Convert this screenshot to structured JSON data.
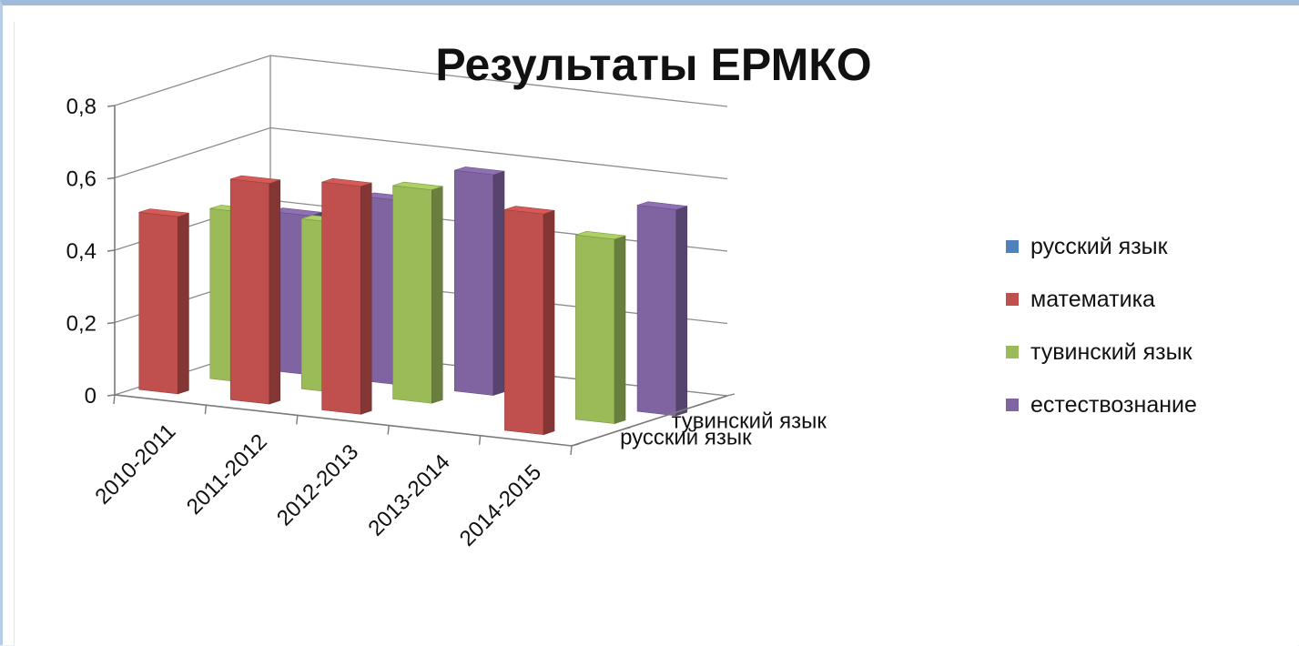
{
  "chart_data": {
    "type": "bar",
    "title": "Результаты ЕРМКО",
    "categories": [
      "2010-2011",
      "2011-2012",
      "2012-2013",
      "2013-2014",
      "2014-2015"
    ],
    "depth_categories": [
      "русский язык",
      "тувинский язык"
    ],
    "ylim": [
      0,
      0.8
    ],
    "yticks": [
      "0",
      "0,2",
      "0,4",
      "0,6",
      "0,8"
    ],
    "legend_position": "right",
    "grid": true,
    "series": [
      {
        "name": "русский язык",
        "color": "#4f81bd",
        "values": [
          null,
          null,
          null,
          null,
          null
        ]
      },
      {
        "name": "математика",
        "color": "#c0504d",
        "values": [
          0.49,
          0.61,
          0.63,
          null,
          0.61
        ]
      },
      {
        "name": "тувинский язык",
        "color": "#9bbb59",
        "values": [
          0.47,
          0.47,
          0.59,
          null,
          0.51
        ]
      },
      {
        "name": "естествознание",
        "color": "#8064a2",
        "values": [
          0.44,
          0.51,
          0.61,
          null,
          0.57
        ]
      }
    ]
  }
}
